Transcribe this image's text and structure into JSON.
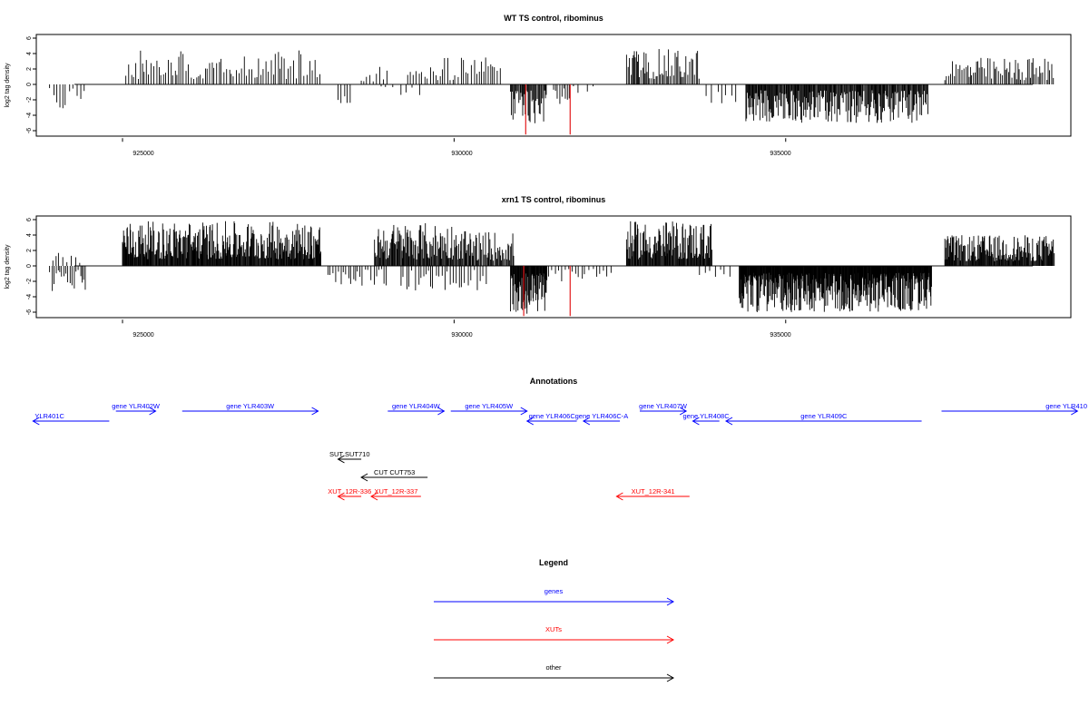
{
  "chart_data": [
    {
      "type": "bar",
      "title": "WT TS control, ribominus",
      "xlabel": "",
      "ylabel": "log2 tag density",
      "xlim": [
        923700,
        939300
      ],
      "ylim": [
        -6.5,
        6.5
      ],
      "yticks": [
        "6",
        "4",
        "2",
        "0",
        "-2",
        "-4",
        "-6"
      ],
      "yticks_values": [
        6,
        4,
        2,
        0,
        -2,
        -4,
        -6
      ],
      "xticks": [
        "925000",
        "930000",
        "935000"
      ],
      "xticks_values": [
        925000,
        930000,
        935000
      ],
      "highlight_color": "#e31a1c",
      "bar_color": "#000000",
      "segments": [
        {
          "start": 923900,
          "end": 924450,
          "sign": -1,
          "max": 3.2,
          "spacing": 55
        },
        {
          "start": 925050,
          "end": 928000,
          "sign": 1,
          "max": 4.6,
          "spacing": 35
        },
        {
          "start": 928250,
          "end": 928450,
          "sign": -1,
          "max": 2.5,
          "spacing": 45
        },
        {
          "start": 928600,
          "end": 929000,
          "sign": 1,
          "max": 2.5,
          "spacing": 45
        },
        {
          "start": 928900,
          "end": 929500,
          "sign": -1,
          "max": 1.5,
          "spacing": 90
        },
        {
          "start": 929300,
          "end": 930700,
          "sign": 1,
          "max": 3.5,
          "spacing": 38
        },
        {
          "start": 930850,
          "end": 931400,
          "sign": -1,
          "max": 5.2,
          "spacing": 14
        },
        {
          "start": 931500,
          "end": 931750,
          "sign": -1,
          "max": 2.8,
          "spacing": 30
        },
        {
          "start": 931800,
          "end": 932100,
          "sign": -1,
          "max": 1.2,
          "spacing": 110
        },
        {
          "start": 932600,
          "end": 933700,
          "sign": 1,
          "max": 4.6,
          "spacing": 22
        },
        {
          "start": 933800,
          "end": 934250,
          "sign": -1,
          "max": 2.8,
          "spacing": 75
        },
        {
          "start": 934400,
          "end": 937150,
          "sign": -1,
          "max": 5.0,
          "spacing": 12
        },
        {
          "start": 937400,
          "end": 939050,
          "sign": 1,
          "max": 3.5,
          "spacing": 26
        }
      ],
      "red_peaks": [
        {
          "x": 931080,
          "value": -6.5
        },
        {
          "x": 931750,
          "value": -6.5
        }
      ]
    },
    {
      "type": "bar",
      "title": "xrn1 TS control, ribominus",
      "xlabel": "",
      "ylabel": "log2 tag density",
      "xlim": [
        923700,
        939300
      ],
      "ylim": [
        -6.5,
        6.5
      ],
      "yticks": [
        "6",
        "4",
        "2",
        "0",
        "-2",
        "-4",
        "-6"
      ],
      "yticks_values": [
        6,
        4,
        2,
        0,
        -2,
        -4,
        -6
      ],
      "xticks": [
        "925000",
        "930000",
        "935000"
      ],
      "xticks_values": [
        925000,
        930000,
        935000
      ],
      "highlight_color": "#e31a1c",
      "bar_color": "#000000",
      "segments": [
        {
          "start": 923900,
          "end": 924450,
          "sign": -1,
          "max": 3.5,
          "spacing": 30
        },
        {
          "start": 923950,
          "end": 924400,
          "sign": 1,
          "max": 2.0,
          "spacing": 55
        },
        {
          "start": 925000,
          "end": 928000,
          "sign": 1,
          "max": 5.8,
          "spacing": 10
        },
        {
          "start": 928100,
          "end": 929000,
          "sign": -1,
          "max": 2.6,
          "spacing": 40
        },
        {
          "start": 928800,
          "end": 930100,
          "sign": 1,
          "max": 5.6,
          "spacing": 12
        },
        {
          "start": 929200,
          "end": 930500,
          "sign": -1,
          "max": 3.4,
          "spacing": 45
        },
        {
          "start": 930100,
          "end": 930900,
          "sign": 1,
          "max": 4.5,
          "spacing": 15
        },
        {
          "start": 930850,
          "end": 931400,
          "sign": -1,
          "max": 6.2,
          "spacing": 8
        },
        {
          "start": 931300,
          "end": 932400,
          "sign": -1,
          "max": 2.0,
          "spacing": 50
        },
        {
          "start": 932600,
          "end": 933900,
          "sign": 1,
          "max": 5.8,
          "spacing": 11
        },
        {
          "start": 933700,
          "end": 934200,
          "sign": -1,
          "max": 1.8,
          "spacing": 70
        },
        {
          "start": 934300,
          "end": 937200,
          "sign": -1,
          "max": 6.0,
          "spacing": 7
        },
        {
          "start": 937400,
          "end": 939050,
          "sign": 1,
          "max": 4.0,
          "spacing": 11
        }
      ],
      "red_peaks": [
        {
          "x": 931050,
          "value": -6.5
        },
        {
          "x": 931750,
          "value": -6.5
        }
      ]
    }
  ],
  "annotations": {
    "title": "Annotations",
    "xlim": [
      923700,
      939300
    ],
    "colors": {
      "genes": "#0000ff",
      "xuts": "#ff0000",
      "other": "#000000"
    },
    "features": [
      {
        "label": "YLR401C",
        "start": 923650,
        "end": 924800,
        "strand": "-",
        "color": "#0000ff",
        "row": 2
      },
      {
        "label": "gene YLR402W",
        "start": 924900,
        "end": 925500,
        "strand": "+",
        "color": "#0000ff",
        "row": 1
      },
      {
        "label": "gene YLR403W",
        "start": 925900,
        "end": 927950,
        "strand": "+",
        "color": "#0000ff",
        "row": 1
      },
      {
        "label": "gene YLR404W",
        "start": 929000,
        "end": 929850,
        "strand": "+",
        "color": "#0000ff",
        "row": 1
      },
      {
        "label": "gene YLR405W",
        "start": 929950,
        "end": 931100,
        "strand": "+",
        "color": "#0000ff",
        "row": 1
      },
      {
        "label": "gene YLR406C",
        "start": 931100,
        "end": 931850,
        "strand": "-",
        "color": "#0000ff",
        "row": 2
      },
      {
        "label": "gene YLR406C-A",
        "start": 931950,
        "end": 932500,
        "strand": "-",
        "color": "#0000ff",
        "row": 2
      },
      {
        "label": "gene YLR407W",
        "start": 932800,
        "end": 933500,
        "strand": "+",
        "color": "#0000ff",
        "row": 1
      },
      {
        "label": "gene YLR408C",
        "start": 933600,
        "end": 934000,
        "strand": "-",
        "color": "#0000ff",
        "row": 2
      },
      {
        "label": "gene YLR409C",
        "start": 934100,
        "end": 937050,
        "strand": "-",
        "color": "#0000ff",
        "row": 2
      },
      {
        "label": "gene YLR410",
        "start": 937350,
        "end": 939400,
        "strand": "+",
        "color": "#0000ff",
        "row": 1
      },
      {
        "label": "SUT SUT710",
        "start": 928250,
        "end": 928600,
        "strand": "-",
        "color": "#000000",
        "row": 4
      },
      {
        "label": "CUT CUT753",
        "start": 928600,
        "end": 929600,
        "strand": "-",
        "color": "#000000",
        "row": 5
      },
      {
        "label": "XUT_12R-336",
        "start": 928250,
        "end": 928600,
        "strand": "-",
        "color": "#ff0000",
        "row": 6
      },
      {
        "label": "XUT_12R-337",
        "start": 928750,
        "end": 929500,
        "strand": "-",
        "color": "#ff0000",
        "row": 6
      },
      {
        "label": "XUT_12R-341",
        "start": 932450,
        "end": 933550,
        "strand": "-",
        "color": "#ff0000",
        "row": 6
      }
    ]
  },
  "legend": {
    "title": "Legend",
    "items": [
      {
        "label": "genes",
        "color": "#0000ff"
      },
      {
        "label": "XUTs",
        "color": "#ff0000"
      },
      {
        "label": "other",
        "color": "#000000"
      }
    ]
  }
}
